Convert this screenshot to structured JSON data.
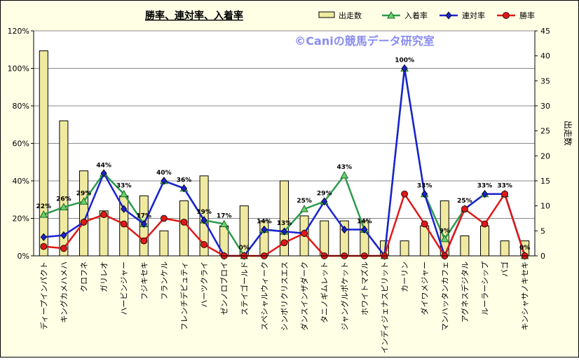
{
  "chart_data": {
    "type": "bar+line",
    "title": "勝率、連対率、入着率",
    "watermark": "©Caniの競馬データ研究室",
    "y2label": "出走数",
    "ylim": [
      0,
      120
    ],
    "yticks": [
      "0%",
      "20%",
      "40%",
      "60%",
      "80%",
      "100%",
      "120%"
    ],
    "y2lim": [
      0,
      45
    ],
    "y2ticks": [
      "0",
      "5",
      "10",
      "15",
      "20",
      "25",
      "30",
      "35",
      "40",
      "45"
    ],
    "legend_position": "top-right",
    "grid": true,
    "categories": [
      "ディープインパクト",
      "キングカメハメハ",
      "クロフネ",
      "ガリレオ",
      "ハービンジャー",
      "フジキセキ",
      "フランケル",
      "フレンチデピュティ",
      "ハーツクライ",
      "ゼンノロブロイ",
      "ステイゴールド",
      "スペシャルウィーク",
      "シンボリクリスエス",
      "ダンスインザダーク",
      "タニノギムレット",
      "ジャングルポケット",
      "ホワイトマズル",
      "インディジェナスピリット",
      "カーリン",
      "ダイワメジャー",
      "マンハッタンカフェ",
      "アグネスデジタル",
      "ルーラーシップ",
      "バゴ",
      "キンシャサノキセキ"
    ],
    "series": [
      {
        "name": "出走数",
        "kind": "bar",
        "axis": "y2",
        "color": "#f0eaa0",
        "values": [
          41,
          27,
          17,
          9,
          12,
          12,
          5,
          11,
          16,
          6,
          10,
          7,
          15,
          8,
          7,
          7,
          7,
          3,
          3,
          6,
          11,
          4,
          6,
          3,
          3
        ]
      },
      {
        "name": "入着率",
        "kind": "line",
        "axis": "y",
        "color": "#2e9a4c",
        "marker": "triangle",
        "values": [
          22,
          26,
          29,
          44,
          33,
          17,
          40,
          36,
          19,
          17,
          0,
          14,
          13,
          25,
          29,
          43,
          14,
          0,
          100,
          33,
          9,
          25,
          33,
          33,
          0
        ],
        "labels": [
          "22%",
          "26%",
          "29%",
          "44%",
          "33%",
          "17%",
          "40%",
          "36%",
          "19%",
          "17%",
          "0%",
          "14%",
          "13%",
          "25%",
          "29%",
          "43%",
          "14%",
          "",
          "100%",
          "33%",
          "9%",
          "25%",
          "33%",
          "33%",
          "0%"
        ]
      },
      {
        "name": "連対率",
        "kind": "line",
        "axis": "y",
        "color": "#1a22d0",
        "marker": "diamond",
        "values": [
          10,
          11,
          18,
          44,
          25,
          17,
          40,
          36,
          19,
          0,
          0,
          14,
          13,
          12,
          29,
          14,
          14,
          0,
          100,
          33,
          0,
          25,
          33,
          33,
          0
        ]
      },
      {
        "name": "勝率",
        "kind": "line",
        "axis": "y",
        "color": "#e01818",
        "marker": "circle",
        "values": [
          5,
          4,
          18,
          22,
          17,
          8,
          20,
          18,
          6,
          0,
          0,
          0,
          7,
          12,
          0,
          0,
          0,
          0,
          33,
          17,
          0,
          25,
          17,
          33,
          0
        ]
      }
    ]
  }
}
